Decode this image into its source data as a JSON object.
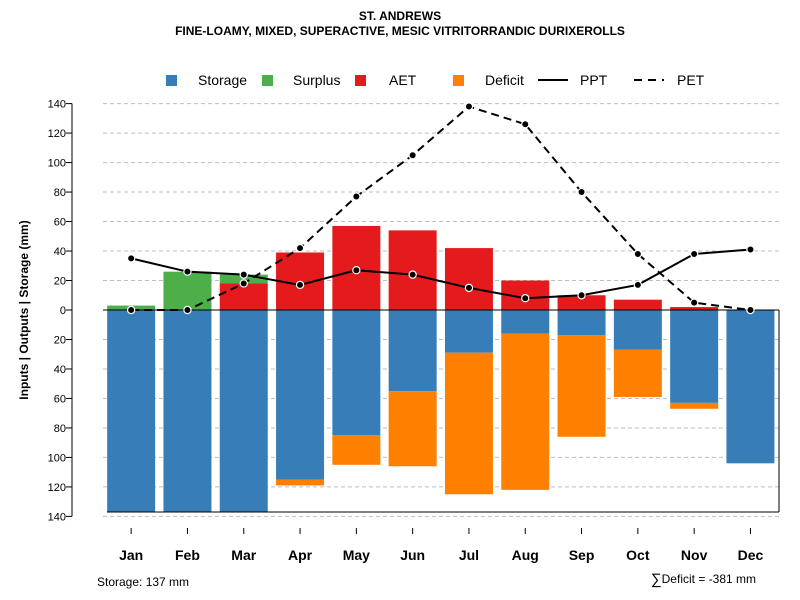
{
  "title": "ST. ANDREWS",
  "subtitle": "FINE-LOAMY, MIXED, SUPERACTIVE, MESIC VITRITORRANDIC DURIXEROLLS",
  "footer": {
    "storage_note": "Storage: 137 mm",
    "deficit_symbol": "∑",
    "deficit_note": "Deficit = -381 mm"
  },
  "colors": {
    "storage": "#377EB8",
    "surplus": "#4DAF4A",
    "aet": "#E41A1C",
    "deficit": "#FF7F00",
    "grid": "#BEBEBE"
  },
  "chart_data": {
    "type": "bar",
    "title": "ST. ANDREWS",
    "subtitle": "FINE-LOAMY, MIXED, SUPERACTIVE, MESIC VITRITORRANDIC DURIXEROLLS",
    "xlabel": "",
    "ylabel": "Inputs | Outputs | Storage    (mm)",
    "ylim": [
      -140,
      140
    ],
    "yticks": [
      140,
      120,
      100,
      80,
      60,
      40,
      20,
      0,
      -20,
      -40,
      -60,
      -80,
      -100,
      -120,
      -140
    ],
    "ytick_labels": [
      "140",
      "120",
      "100",
      "80",
      "60",
      "40",
      "20",
      "0",
      "20",
      "40",
      "60",
      "80",
      "100",
      "120",
      "140"
    ],
    "grid": true,
    "legend_position": "top",
    "legend": [
      {
        "name": "Storage",
        "kind": "box",
        "color": "#377EB8"
      },
      {
        "name": "Surplus",
        "kind": "box",
        "color": "#4DAF4A"
      },
      {
        "name": "AET",
        "kind": "box",
        "color": "#E41A1C"
      },
      {
        "name": "Deficit",
        "kind": "box",
        "color": "#FF7F00"
      },
      {
        "name": "PPT",
        "kind": "line-solid",
        "color": "#000000"
      },
      {
        "name": "PET",
        "kind": "line-dashed",
        "color": "#000000"
      }
    ],
    "categories": [
      "Jan",
      "Feb",
      "Mar",
      "Apr",
      "May",
      "Jun",
      "Jul",
      "Aug",
      "Sep",
      "Oct",
      "Nov",
      "Dec"
    ],
    "series": [
      {
        "name": "Storage",
        "color": "#377EB8",
        "values": [
          137,
          137,
          137,
          115,
          85,
          55,
          29,
          16,
          17,
          27,
          63,
          104
        ]
      },
      {
        "name": "Surplus",
        "color": "#4DAF4A",
        "values": [
          3,
          26,
          6,
          0,
          0,
          0,
          0,
          0,
          0,
          0,
          0,
          0
        ]
      },
      {
        "name": "AET",
        "color": "#E41A1C",
        "values": [
          0,
          0,
          18,
          39,
          57,
          54,
          42,
          20,
          10,
          7,
          2,
          0
        ]
      },
      {
        "name": "Deficit",
        "color": "#FF7F00",
        "values": [
          0,
          0,
          0,
          4,
          20,
          51,
          96,
          106,
          69,
          32,
          4,
          0
        ]
      },
      {
        "name": "PPT",
        "color": "#000000",
        "style": "solid",
        "values": [
          35,
          26,
          24,
          17,
          27,
          24,
          15,
          8,
          10,
          17,
          38,
          41
        ]
      },
      {
        "name": "PET",
        "color": "#000000",
        "style": "dashed",
        "values": [
          0,
          0,
          18,
          42,
          77,
          105,
          138,
          126,
          80,
          38,
          5,
          0
        ]
      }
    ]
  }
}
